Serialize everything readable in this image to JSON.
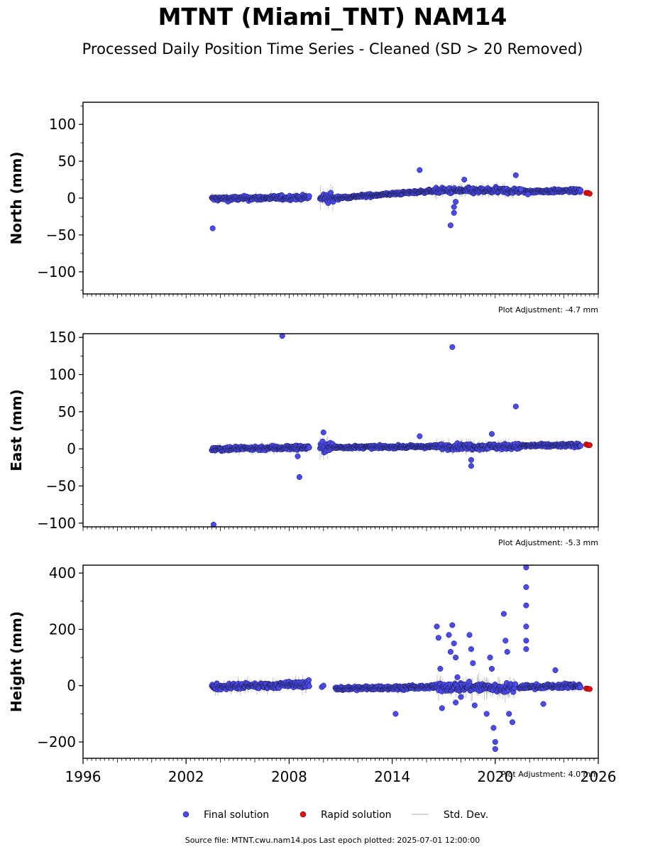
{
  "header": {
    "title": "MTNT (Miami_TNT) NAM14",
    "subtitle": "Processed Daily Position Time Series - Cleaned (SD > 20 Removed)"
  },
  "footer": {
    "text": "Source file: MTNT.cwu.nam14.pos  Last epoch plotted: 2025-07-01 12:00:00"
  },
  "legend": {
    "position": "bottom-center",
    "items": [
      {
        "label": "Final solution",
        "color": "#4a4af0"
      },
      {
        "label": "Rapid solution",
        "color": "#e01010"
      },
      {
        "label": "Std. Dev.",
        "color": "#cccccc"
      }
    ]
  },
  "colors": {
    "final": "#4a4af0",
    "rapid": "#e01010",
    "stddev": "#c8c8c8",
    "edge": "#1a1a40"
  },
  "chart_data": [
    {
      "type": "scatter",
      "ylabel": "North (mm)",
      "xlim": [
        1996,
        2026
      ],
      "ylim": [
        -130,
        130
      ],
      "yticks": [
        100,
        50,
        0,
        -50,
        -100
      ],
      "ytick_labels": [
        "100",
        "50",
        "0",
        "−50",
        "−100"
      ],
      "xticks": [],
      "adjustment": "Plot Adjustment: -4.7 mm",
      "data_span": [
        2003.5,
        2025.0
      ],
      "gap": [
        2009.2,
        2009.8
      ],
      "series": [
        {
          "name": "Final solution",
          "segments": [
            {
              "from": 2003.5,
              "to": 2009.2,
              "level_start": -1,
              "level_end": 1,
              "noise": 4
            },
            {
              "from": 2009.8,
              "to": 2010.6,
              "level_start": 0,
              "level_end": 0,
              "noise": 10
            },
            {
              "from": 2010.6,
              "to": 2016.5,
              "level_start": 0,
              "level_end": 10,
              "noise": 2.5
            },
            {
              "from": 2016.5,
              "to": 2021.5,
              "level_start": 10,
              "level_end": 10,
              "noise": 5
            },
            {
              "from": 2021.5,
              "to": 2025.0,
              "level_start": 9,
              "level_end": 10,
              "noise": 3
            }
          ],
          "outliers": [
            [
              2003.55,
              -41
            ],
            [
              2015.6,
              38
            ],
            [
              2017.4,
              -37
            ],
            [
              2017.6,
              -20
            ],
            [
              2017.6,
              -12
            ],
            [
              2017.7,
              -5
            ],
            [
              2018.2,
              25
            ],
            [
              2021.2,
              31
            ],
            [
              2021.5,
              12
            ],
            [
              2021.9,
              5
            ]
          ]
        },
        {
          "name": "Rapid solution",
          "points": [
            [
              2025.3,
              7
            ],
            [
              2025.4,
              7
            ],
            [
              2025.5,
              6
            ]
          ]
        }
      ]
    },
    {
      "type": "scatter",
      "ylabel": "East (mm)",
      "xlim": [
        1996,
        2026
      ],
      "ylim": [
        -105,
        155
      ],
      "yticks": [
        150,
        100,
        50,
        0,
        -50,
        -100
      ],
      "ytick_labels": [
        "150",
        "100",
        "50",
        "0",
        "−50",
        "−100"
      ],
      "xticks": [],
      "adjustment": "Plot Adjustment: -5.3 mm",
      "data_span": [
        2003.5,
        2025.0
      ],
      "gap": [
        2009.2,
        2009.8
      ],
      "series": [
        {
          "name": "Final solution",
          "segments": [
            {
              "from": 2003.5,
              "to": 2009.2,
              "level_start": 0,
              "level_end": 2,
              "noise": 4
            },
            {
              "from": 2009.8,
              "to": 2010.6,
              "level_start": 2,
              "level_end": 2,
              "noise": 9
            },
            {
              "from": 2010.6,
              "to": 2016.5,
              "level_start": 2,
              "level_end": 3,
              "noise": 2.5
            },
            {
              "from": 2016.5,
              "to": 2021.5,
              "level_start": 3,
              "level_end": 3,
              "noise": 5
            },
            {
              "from": 2021.5,
              "to": 2025.0,
              "level_start": 4,
              "level_end": 5,
              "noise": 3
            }
          ],
          "outliers": [
            [
              2003.6,
              -102
            ],
            [
              2007.6,
              152
            ],
            [
              2008.5,
              -10
            ],
            [
              2008.6,
              -38
            ],
            [
              2015.6,
              17
            ],
            [
              2017.5,
              137
            ],
            [
              2018.6,
              -15
            ],
            [
              2018.6,
              -23
            ],
            [
              2019.8,
              20
            ],
            [
              2021.2,
              57
            ],
            [
              2010.0,
              22
            ]
          ]
        },
        {
          "name": "Rapid solution",
          "points": [
            [
              2025.3,
              6
            ],
            [
              2025.4,
              5
            ],
            [
              2025.5,
              5
            ]
          ]
        }
      ]
    },
    {
      "type": "scatter",
      "ylabel": "Height (mm)",
      "xlim": [
        1996,
        2026
      ],
      "ylim": [
        -258,
        428
      ],
      "yticks": [
        400,
        200,
        0,
        -200
      ],
      "ytick_labels": [
        "400",
        "200",
        "0",
        "−200"
      ],
      "xticks": [
        1996,
        2002,
        2008,
        2014,
        2020,
        2026
      ],
      "adjustment": "Plot Adjustment: 4.0 mm",
      "data_span": [
        2003.5,
        2025.0
      ],
      "gap": [
        2009.2,
        2010.6
      ],
      "series": [
        {
          "name": "Final solution",
          "segments": [
            {
              "from": 2003.5,
              "to": 2009.2,
              "level_start": -5,
              "level_end": 5,
              "noise": 14
            },
            {
              "from": 2010.7,
              "to": 2016.5,
              "level_start": -10,
              "level_end": -5,
              "noise": 9
            },
            {
              "from": 2016.5,
              "to": 2018.6,
              "level_start": -5,
              "level_end": -5,
              "noise": 20
            },
            {
              "from": 2018.6,
              "to": 2021.2,
              "level_start": -5,
              "level_end": -10,
              "noise": 22
            },
            {
              "from": 2021.4,
              "to": 2025.0,
              "level_start": -5,
              "level_end": 0,
              "noise": 10
            }
          ],
          "outliers": [
            [
              2009.9,
              -5
            ],
            [
              2010.0,
              0
            ],
            [
              2014.2,
              -100
            ],
            [
              2016.6,
              210
            ],
            [
              2016.7,
              170
            ],
            [
              2016.8,
              60
            ],
            [
              2016.9,
              -80
            ],
            [
              2017.3,
              180
            ],
            [
              2017.4,
              120
            ],
            [
              2017.5,
              215
            ],
            [
              2017.6,
              150
            ],
            [
              2017.7,
              100
            ],
            [
              2017.7,
              -60
            ],
            [
              2017.8,
              30
            ],
            [
              2018.0,
              -40
            ],
            [
              2018.5,
              180
            ],
            [
              2018.6,
              130
            ],
            [
              2018.7,
              80
            ],
            [
              2018.8,
              -70
            ],
            [
              2019.5,
              -100
            ],
            [
              2019.7,
              100
            ],
            [
              2019.8,
              60
            ],
            [
              2019.9,
              -150
            ],
            [
              2020.0,
              -200
            ],
            [
              2020.0,
              -225
            ],
            [
              2020.5,
              255
            ],
            [
              2020.6,
              160
            ],
            [
              2020.7,
              120
            ],
            [
              2020.8,
              -100
            ],
            [
              2021.0,
              -130
            ],
            [
              2021.8,
              420
            ],
            [
              2021.8,
              350
            ],
            [
              2021.8,
              285
            ],
            [
              2021.8,
              210
            ],
            [
              2021.8,
              160
            ],
            [
              2021.8,
              130
            ],
            [
              2023.5,
              55
            ],
            [
              2022.8,
              -65
            ]
          ]
        },
        {
          "name": "Rapid solution",
          "points": [
            [
              2025.3,
              -10
            ],
            [
              2025.4,
              -11
            ],
            [
              2025.5,
              -12
            ]
          ]
        }
      ]
    }
  ]
}
